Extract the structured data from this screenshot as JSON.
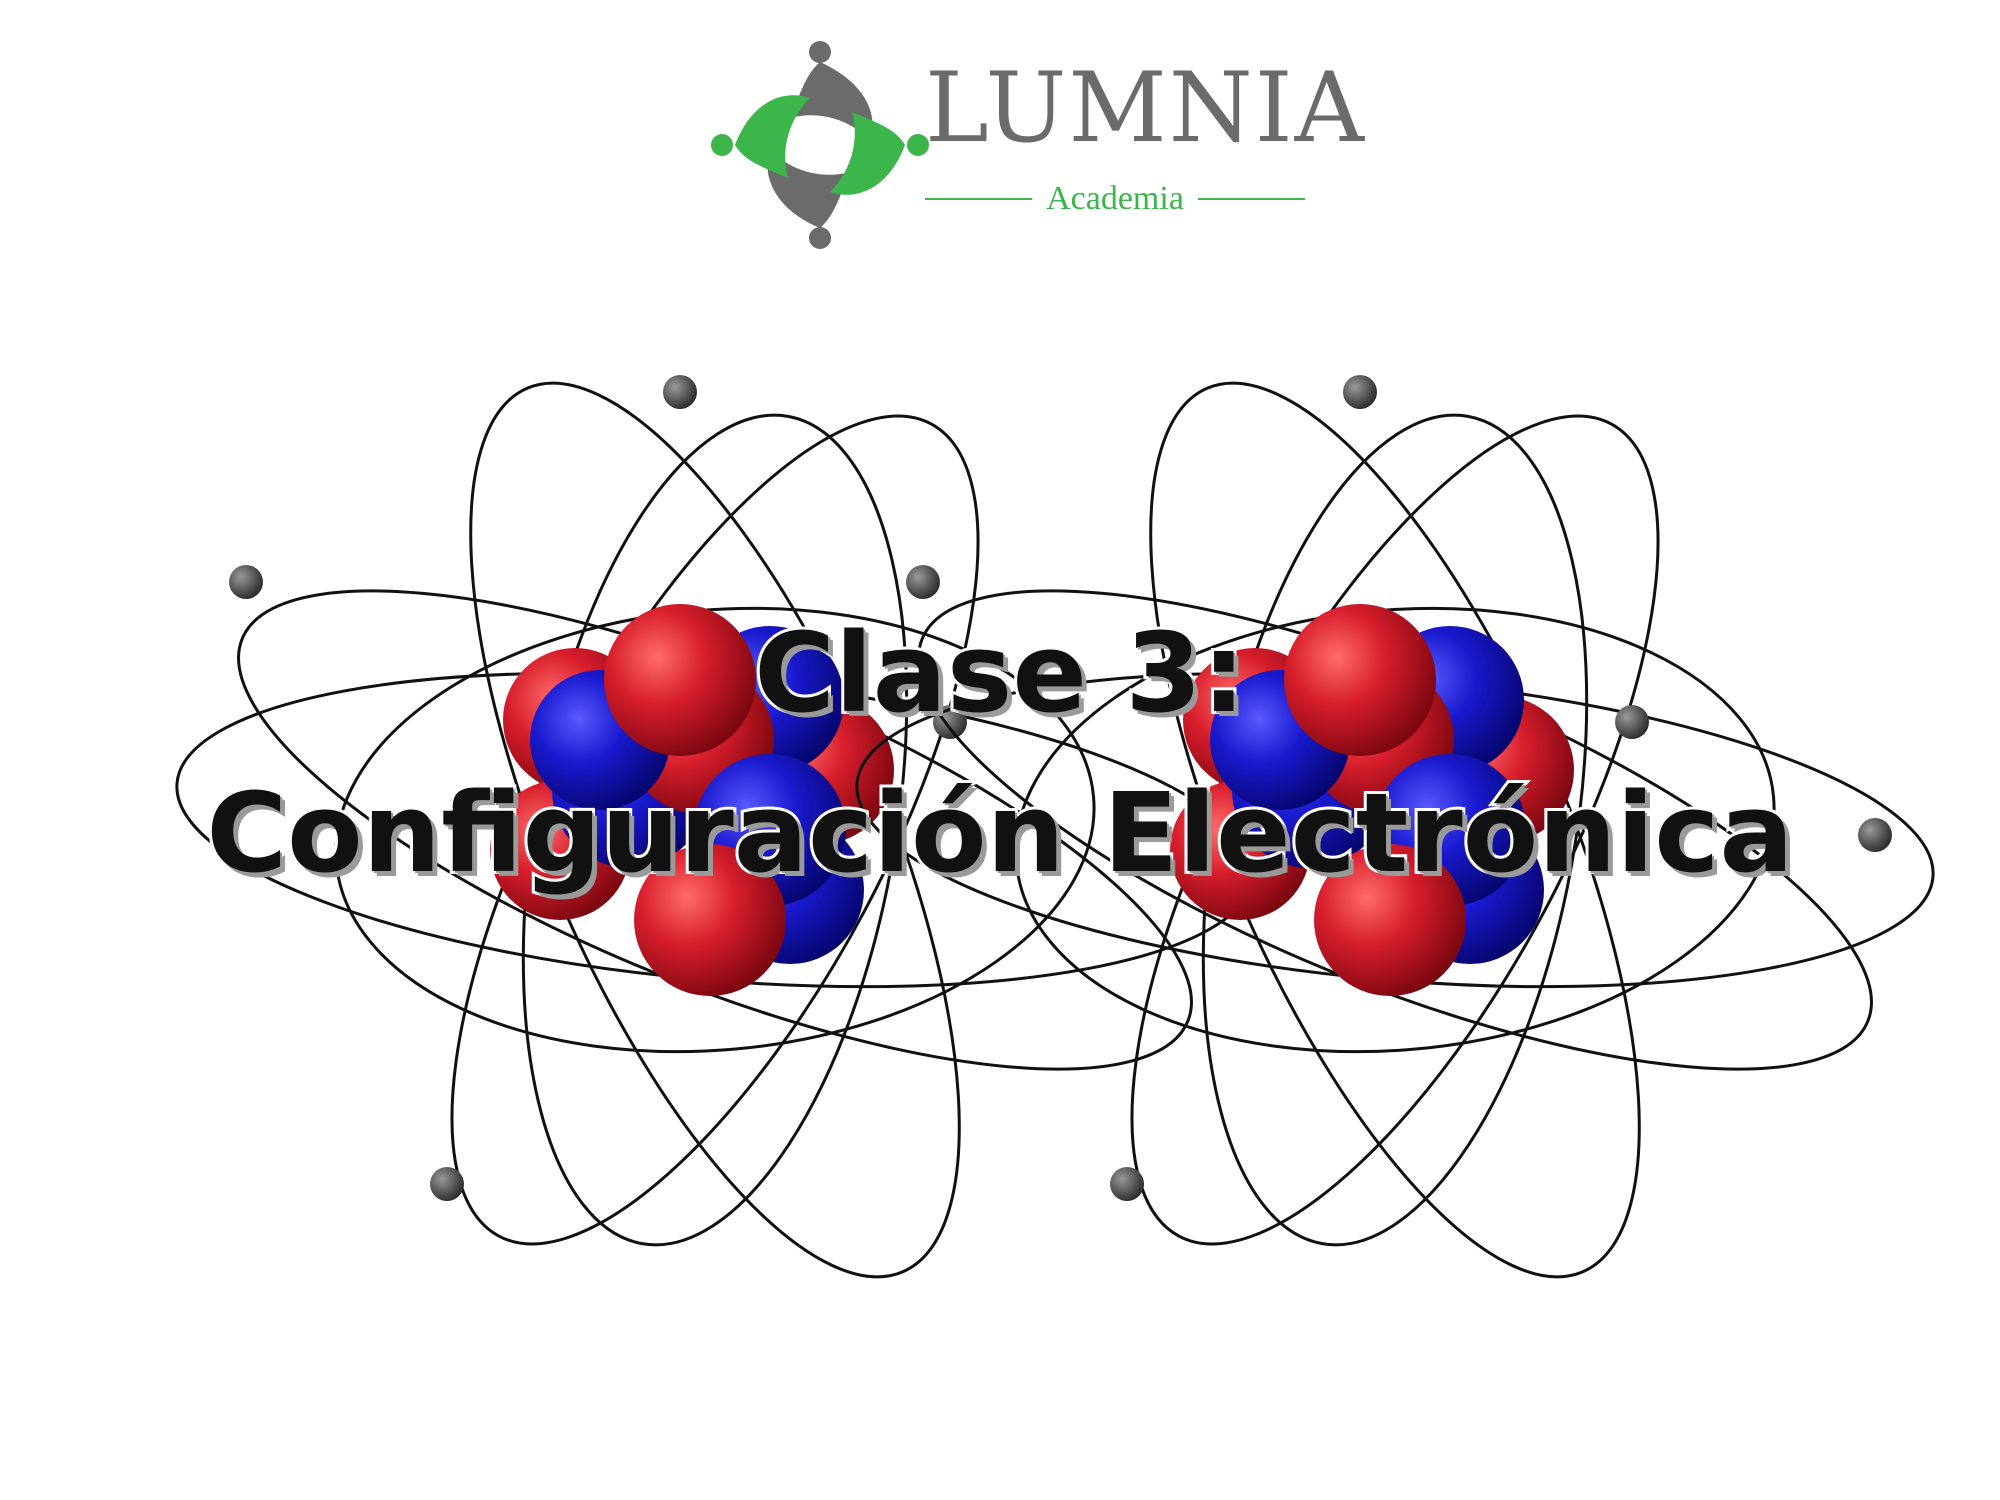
{
  "colors": {
    "brand_green": "#3cb54a",
    "brand_gray": "#6b6b6b",
    "proton_red": "#d81e2c",
    "neutron_blue": "#1a1ad0",
    "electron_gray": "#555555",
    "title_text": "#111111"
  },
  "logo": {
    "icon": "lumnia-people-circle-icon",
    "name": "LUMNIA",
    "subtitle": "Academia"
  },
  "slide": {
    "title_line1": "Clase 3:",
    "title_line2": "Configuración Electrónica"
  },
  "illustration": {
    "description_icon": "atom-model-icon",
    "atom_count": 2
  }
}
